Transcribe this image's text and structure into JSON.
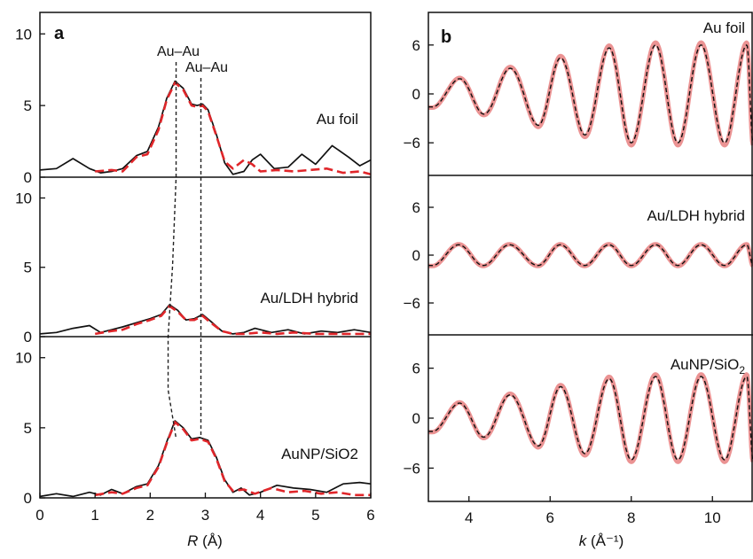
{
  "chart_data": [
    {
      "panel": "a",
      "type": "line",
      "xlabel_var": "R",
      "xlabel_unit": "(Å)",
      "xlim": [
        0,
        6
      ],
      "x_ticks": [
        "0",
        "1",
        "2",
        "3",
        "4",
        "5",
        "6"
      ],
      "peak_labels": [
        "Au–Au",
        "Au–Au"
      ],
      "peak_positions": [
        2.47,
        2.92
      ],
      "subplots": [
        {
          "label": "Au foil",
          "ylim": [
            0,
            11.5
          ],
          "y_ticks": [
            "0",
            "5",
            "10"
          ],
          "series": [
            {
              "style": "data-black-solid",
              "x": [
                0,
                0.3,
                0.6,
                0.9,
                1.1,
                1.3,
                1.5,
                1.75,
                1.95,
                2.15,
                2.3,
                2.45,
                2.6,
                2.75,
                2.85,
                2.95,
                3.05,
                3.2,
                3.35,
                3.5,
                3.7,
                3.85,
                4.0,
                4.25,
                4.5,
                4.75,
                5.0,
                5.3,
                5.6,
                5.8,
                6.0
              ],
              "y": [
                0.5,
                0.6,
                1.3,
                0.6,
                0.3,
                0.4,
                0.6,
                1.5,
                1.8,
                3.5,
                5.5,
                6.7,
                6.2,
                5.1,
                5.0,
                5.1,
                4.7,
                3.0,
                1.0,
                0.2,
                0.4,
                1.2,
                1.6,
                0.6,
                0.7,
                1.6,
                0.9,
                2.2,
                1.4,
                0.8,
                1.2
              ]
            },
            {
              "style": "fit-red-dash",
              "x": [
                1.0,
                1.3,
                1.5,
                1.75,
                1.95,
                2.15,
                2.3,
                2.45,
                2.6,
                2.75,
                2.85,
                2.95,
                3.05,
                3.2,
                3.35,
                3.5,
                3.7,
                3.85,
                4.0,
                4.3,
                4.6,
                4.9,
                5.2,
                5.5,
                5.8,
                6.0
              ],
              "y": [
                0.4,
                0.5,
                0.4,
                1.4,
                1.6,
                3.3,
                5.4,
                6.6,
                6.1,
                5.0,
                4.9,
                5.0,
                4.6,
                2.9,
                1.1,
                0.6,
                1.2,
                0.9,
                0.4,
                0.5,
                0.4,
                0.5,
                0.6,
                0.3,
                0.4,
                0.2
              ]
            }
          ]
        },
        {
          "label": "Au/LDH hybrid",
          "ylim": [
            0,
            11.5
          ],
          "y_ticks": [
            "0",
            "5",
            "10"
          ],
          "series": [
            {
              "style": "data-black-solid",
              "x": [
                0,
                0.3,
                0.6,
                0.9,
                1.1,
                1.3,
                1.5,
                1.75,
                2.0,
                2.2,
                2.35,
                2.5,
                2.65,
                2.8,
                2.95,
                3.1,
                3.3,
                3.5,
                3.7,
                3.9,
                4.2,
                4.5,
                4.8,
                5.1,
                5.4,
                5.7,
                6.0
              ],
              "y": [
                0.2,
                0.3,
                0.6,
                0.8,
                0.3,
                0.5,
                0.7,
                1.0,
                1.3,
                1.6,
                2.3,
                1.9,
                1.2,
                1.3,
                1.6,
                1.1,
                0.4,
                0.2,
                0.3,
                0.6,
                0.3,
                0.5,
                0.2,
                0.4,
                0.3,
                0.5,
                0.3
              ]
            },
            {
              "style": "fit-red-dash",
              "x": [
                1.0,
                1.3,
                1.5,
                1.75,
                2.0,
                2.2,
                2.35,
                2.5,
                2.65,
                2.8,
                2.95,
                3.1,
                3.3,
                3.5,
                3.7,
                4.0,
                4.3,
                4.6,
                5.0,
                5.5,
                6.0
              ],
              "y": [
                0.2,
                0.4,
                0.5,
                0.9,
                1.2,
                1.5,
                2.2,
                1.8,
                1.2,
                1.2,
                1.5,
                1.0,
                0.4,
                0.2,
                0.2,
                0.3,
                0.2,
                0.3,
                0.2,
                0.2,
                0.2
              ]
            }
          ]
        },
        {
          "label": "AuNP/SiO2",
          "ylim": [
            0,
            11.5
          ],
          "y_ticks": [
            "0",
            "5",
            "10"
          ],
          "series": [
            {
              "style": "data-black-solid",
              "x": [
                0,
                0.3,
                0.6,
                0.9,
                1.1,
                1.3,
                1.5,
                1.75,
                1.95,
                2.15,
                2.3,
                2.45,
                2.6,
                2.75,
                2.9,
                3.05,
                3.2,
                3.35,
                3.5,
                3.65,
                3.8,
                4.0,
                4.3,
                4.6,
                4.9,
                5.2,
                5.5,
                5.8,
                6.0
              ],
              "y": [
                0.1,
                0.3,
                0.1,
                0.4,
                0.2,
                0.6,
                0.3,
                0.8,
                1.0,
                2.3,
                4.0,
                5.5,
                5.0,
                4.2,
                4.3,
                4.1,
                2.9,
                1.3,
                0.4,
                0.7,
                0.2,
                0.4,
                0.9,
                0.7,
                0.6,
                0.4,
                1.0,
                1.1,
                1.0
              ]
            },
            {
              "style": "fit-red-dash",
              "x": [
                1.0,
                1.3,
                1.5,
                1.75,
                1.95,
                2.15,
                2.3,
                2.45,
                2.6,
                2.75,
                2.9,
                3.05,
                3.2,
                3.35,
                3.5,
                3.7,
                3.9,
                4.2,
                4.5,
                4.8,
                5.1,
                5.4,
                5.7,
                6.0
              ],
              "y": [
                0.2,
                0.4,
                0.3,
                0.7,
                0.9,
                2.2,
                3.9,
                5.4,
                4.9,
                4.1,
                4.2,
                4.0,
                2.8,
                1.2,
                0.5,
                0.6,
                0.3,
                0.7,
                0.4,
                0.5,
                0.3,
                0.4,
                0.2,
                0.2
              ]
            }
          ]
        }
      ]
    },
    {
      "panel": "b",
      "type": "line",
      "xlabel_var": "k",
      "xlabel_unit": "(Å⁻¹)",
      "xlim": [
        3,
        11
      ],
      "x_ticks": [
        "4",
        "6",
        "8",
        "10"
      ],
      "subplots": [
        {
          "label": "Au foil",
          "ylim": [
            -10,
            10
          ],
          "y_ticks": [
            "6",
            "0",
            "−6"
          ],
          "amplitude": [
            1.6,
            6.0
          ],
          "phase_offset": 0
        },
        {
          "label": "Au/LDH hybrid",
          "ylim": [
            -10,
            10
          ],
          "y_ticks": [
            "6",
            "0",
            "−6"
          ],
          "amplitude": [
            1.3,
            1.3
          ],
          "phase_offset": 0
        },
        {
          "label": "AuNP/SiO",
          "label_sub": "2",
          "ylim": [
            -10,
            10
          ],
          "y_ticks": [
            "6",
            "0",
            "−6"
          ],
          "amplitude": [
            1.6,
            5.0
          ],
          "phase_offset": 0
        }
      ]
    }
  ],
  "panel_letters": [
    "a",
    "b"
  ],
  "colors": {
    "data": "#111111",
    "fit_a": "#e0262a",
    "fit_b": "#e98787"
  }
}
